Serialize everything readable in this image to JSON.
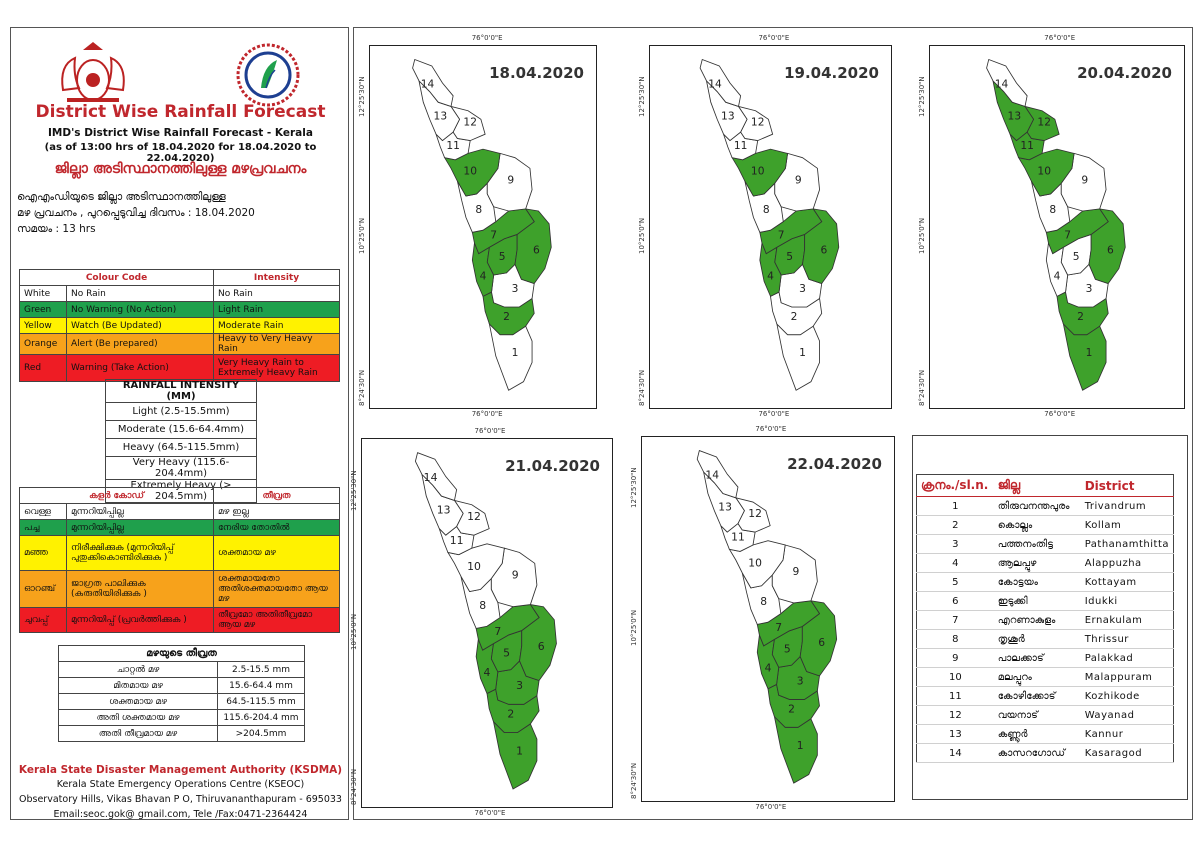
{
  "header": {
    "title": "District Wise Rainfall Forecast",
    "subtitle": "IMD's District Wise Rainfall Forecast - Kerala",
    "as_of": "(as of 13:00 hrs of 18.04.2020  for 18.04.2020  to 22.04.2020)",
    "title_ml": "ജില്ലാ അടിസ്ഥാനത്തിലുള്ള മഴപ്രവചനം",
    "desc_ml_1": "ഐഎംഡിയുടെ ജില്ലാ  അടിസ്ഥാനത്തിലുള്ള",
    "desc_ml_2": "മഴ പ്രവചനം  , പുറപ്പെടുവിച്ച  ദിവസം : 18.04.2020",
    "desc_ml_3": "സമയം : 13  hrs"
  },
  "colour_code": {
    "col1": "Colour Code",
    "col2": "Intensity",
    "rows": [
      {
        "name": "White",
        "meaning": "No Rain",
        "intensity": "No Rain",
        "color": "#ffffff"
      },
      {
        "name": "Green",
        "meaning": "No Warning (No Action)",
        "intensity": "Light Rain",
        "color": "#1fa04c"
      },
      {
        "name": "Yellow",
        "meaning": "Watch (Be Updated)",
        "intensity": "Moderate Rain",
        "color": "#fff200"
      },
      {
        "name": "Orange",
        "meaning": "Alert (Be prepared)",
        "intensity": "Heavy to Very Heavy Rain",
        "color": "#f7a21b"
      },
      {
        "name": "Red",
        "meaning": "Warning (Take Action)",
        "intensity": "Very Heavy Rain to Extremely Heavy Rain",
        "color": "#ee1c24"
      }
    ]
  },
  "rainfall_intensity": {
    "title": "RAINFALL INTENSITY (MM)",
    "rows": [
      "Light (2.5-15.5mm)",
      "Moderate (15.6-64.4mm)",
      "Heavy (64.5-115.5mm)",
      "Very Heavy (115.6-204.4mm)",
      "Extremely Heavy (> 204.5mm)"
    ]
  },
  "colour_code_ml": {
    "col1": "കളർ കോഡ്",
    "col2": "തീവ്രത",
    "rows": [
      {
        "name": "വെള്ള",
        "meaning": "മുന്നറിയിപ്പില്ല",
        "intensity": "മഴ ഇല്ല",
        "color": "#ffffff"
      },
      {
        "name": "പച്ച",
        "meaning": "മുന്നറിയിപ്പില്ല",
        "intensity": "നേരിയ തോതിൽ",
        "color": "#1fa04c"
      },
      {
        "name": "മഞ്ഞ",
        "meaning": "നിരീക്ഷിക്കുക (മുന്നറിയിപ്പ് പുതുക്കികൊണ്ടിരിക്കുക )",
        "intensity": "ശക്തമായ മഴ",
        "color": "#fff200"
      },
      {
        "name": "ഓറഞ്ച്",
        "meaning": "ജാഗ്രത പാലിക്കുക (കരുതിയിരിക്കുക )",
        "intensity": "ശക്തമായതോ അതിശക്തമായതോ ആയ മഴ",
        "color": "#f7a21b"
      },
      {
        "name": "ചുവപ്പ്",
        "meaning": "മുന്നറിയിപ്പ് (പ്രവർത്തിക്കുക )",
        "intensity": "തീവ്രമോ അതിതീവ്രമോ ആയ മഴ",
        "color": "#ee1c24"
      }
    ]
  },
  "intensity_ml": {
    "title": "മഴയുടെ തീവ്രത",
    "rows": [
      {
        "label": "ചാറ്റൽ മഴ",
        "range": "2.5-15.5 mm"
      },
      {
        "label": "മിതമായ മഴ",
        "range": "15.6-64.4 mm"
      },
      {
        "label": "ശക്തമായ മഴ",
        "range": "64.5-115.5 mm"
      },
      {
        "label": "അതി ശക്തമായ മഴ",
        "range": "115.6-204.4 mm"
      },
      {
        "label": "അതി തീവ്രമായ മഴ",
        "range": ">204.5mm"
      }
    ]
  },
  "footer": {
    "org": "Kerala State Disaster Management Authority (KSDMA)",
    "line1": "Kerala State Emergency Operations Centre (KSEOC)",
    "line2": "Observatory Hills, Vikas Bhavan P O, Thiruvananthapuram - 695033",
    "line3": "Email:seoc.gok@ gmail.com, Tele /Fax:0471-2364424"
  },
  "maps": [
    {
      "date": "18.04.2020",
      "green": [
        2,
        4,
        5,
        6,
        7,
        10
      ],
      "coord_top": "76°0'0\"E",
      "coord_bottom": "76°0'0\"E",
      "lat_top": "12°25'30\"N",
      "lat_mid": "10°25'0\"N",
      "lat_bottom": "8°24'30\"N"
    },
    {
      "date": "19.04.2020",
      "green": [
        4,
        5,
        6,
        7,
        10
      ],
      "coord_top": "76°0'0\"E",
      "coord_bottom": "76°0'0\"E",
      "lat_top": "12°25'30\"N",
      "lat_mid": "10°25'0\"N",
      "lat_bottom": "8°24'30\"N"
    },
    {
      "date": "20.04.2020",
      "green": [
        1,
        2,
        6,
        7,
        10,
        11,
        12,
        13
      ],
      "coord_top": "76°0'0\"E",
      "coord_bottom": "76°0'0\"E",
      "lat_top": "12°25'30\"N",
      "lat_mid": "10°25'0\"N",
      "lat_bottom": "8°24'30\"N"
    },
    {
      "date": "21.04.2020",
      "green": [
        1,
        2,
        3,
        4,
        5,
        6,
        7
      ],
      "coord_top": "76°0'0\"E",
      "coord_bottom": "76°0'0\"E",
      "lat_top": "12°25'30\"N",
      "lat_mid": "10°25'0\"N",
      "lat_bottom": "8°24'30\"N"
    },
    {
      "date": "22.04.2020",
      "green": [
        1,
        2,
        3,
        4,
        5,
        6,
        7
      ],
      "coord_top": "76°0'0\"E",
      "coord_bottom": "76°0'0\"E",
      "lat_top": "12°25'30\"N",
      "lat_mid": "10°25'0\"N",
      "lat_bottom": "8°24'30\"N"
    }
  ],
  "district_table": {
    "col_no": "ക്രനം./sl.n.",
    "col_ml": "ജില്ല",
    "col_en": "District",
    "rows": [
      {
        "no": "1",
        "ml": "തിരുവനന്തപുരം",
        "en": "Trivandrum"
      },
      {
        "no": "2",
        "ml": "കൊല്ലം",
        "en": "Kollam"
      },
      {
        "no": "3",
        "ml": "പത്തനംതിട്ട",
        "en": "Pathanamthitta"
      },
      {
        "no": "4",
        "ml": "ആലപ്പുഴ",
        "en": "Alappuzha"
      },
      {
        "no": "5",
        "ml": "കോട്ടയം",
        "en": "Kottayam"
      },
      {
        "no": "6",
        "ml": "ഇടുക്കി",
        "en": "Idukki"
      },
      {
        "no": "7",
        "ml": "എറണാകുളം",
        "en": "Ernakulam"
      },
      {
        "no": "8",
        "ml": "തൃശൂർ",
        "en": "Thrissur"
      },
      {
        "no": "9",
        "ml": "പാലക്കാട്",
        "en": "Palakkad"
      },
      {
        "no": "10",
        "ml": "മലപ്പുറം",
        "en": "Malappuram"
      },
      {
        "no": "11",
        "ml": "കോഴിക്കോട്",
        "en": "Kozhikode"
      },
      {
        "no": "12",
        "ml": "വയനാട്",
        "en": "Wayanad"
      },
      {
        "no": "13",
        "ml": "കണ്ണൂർ",
        "en": "Kannur"
      },
      {
        "no": "14",
        "ml": "കാസറഗോഡ്",
        "en": "Kasaragod"
      }
    ]
  },
  "colors": {
    "green": "#3ea12b",
    "white": "#ffffff",
    "red_title": "#c0272d",
    "border": "#555555"
  }
}
